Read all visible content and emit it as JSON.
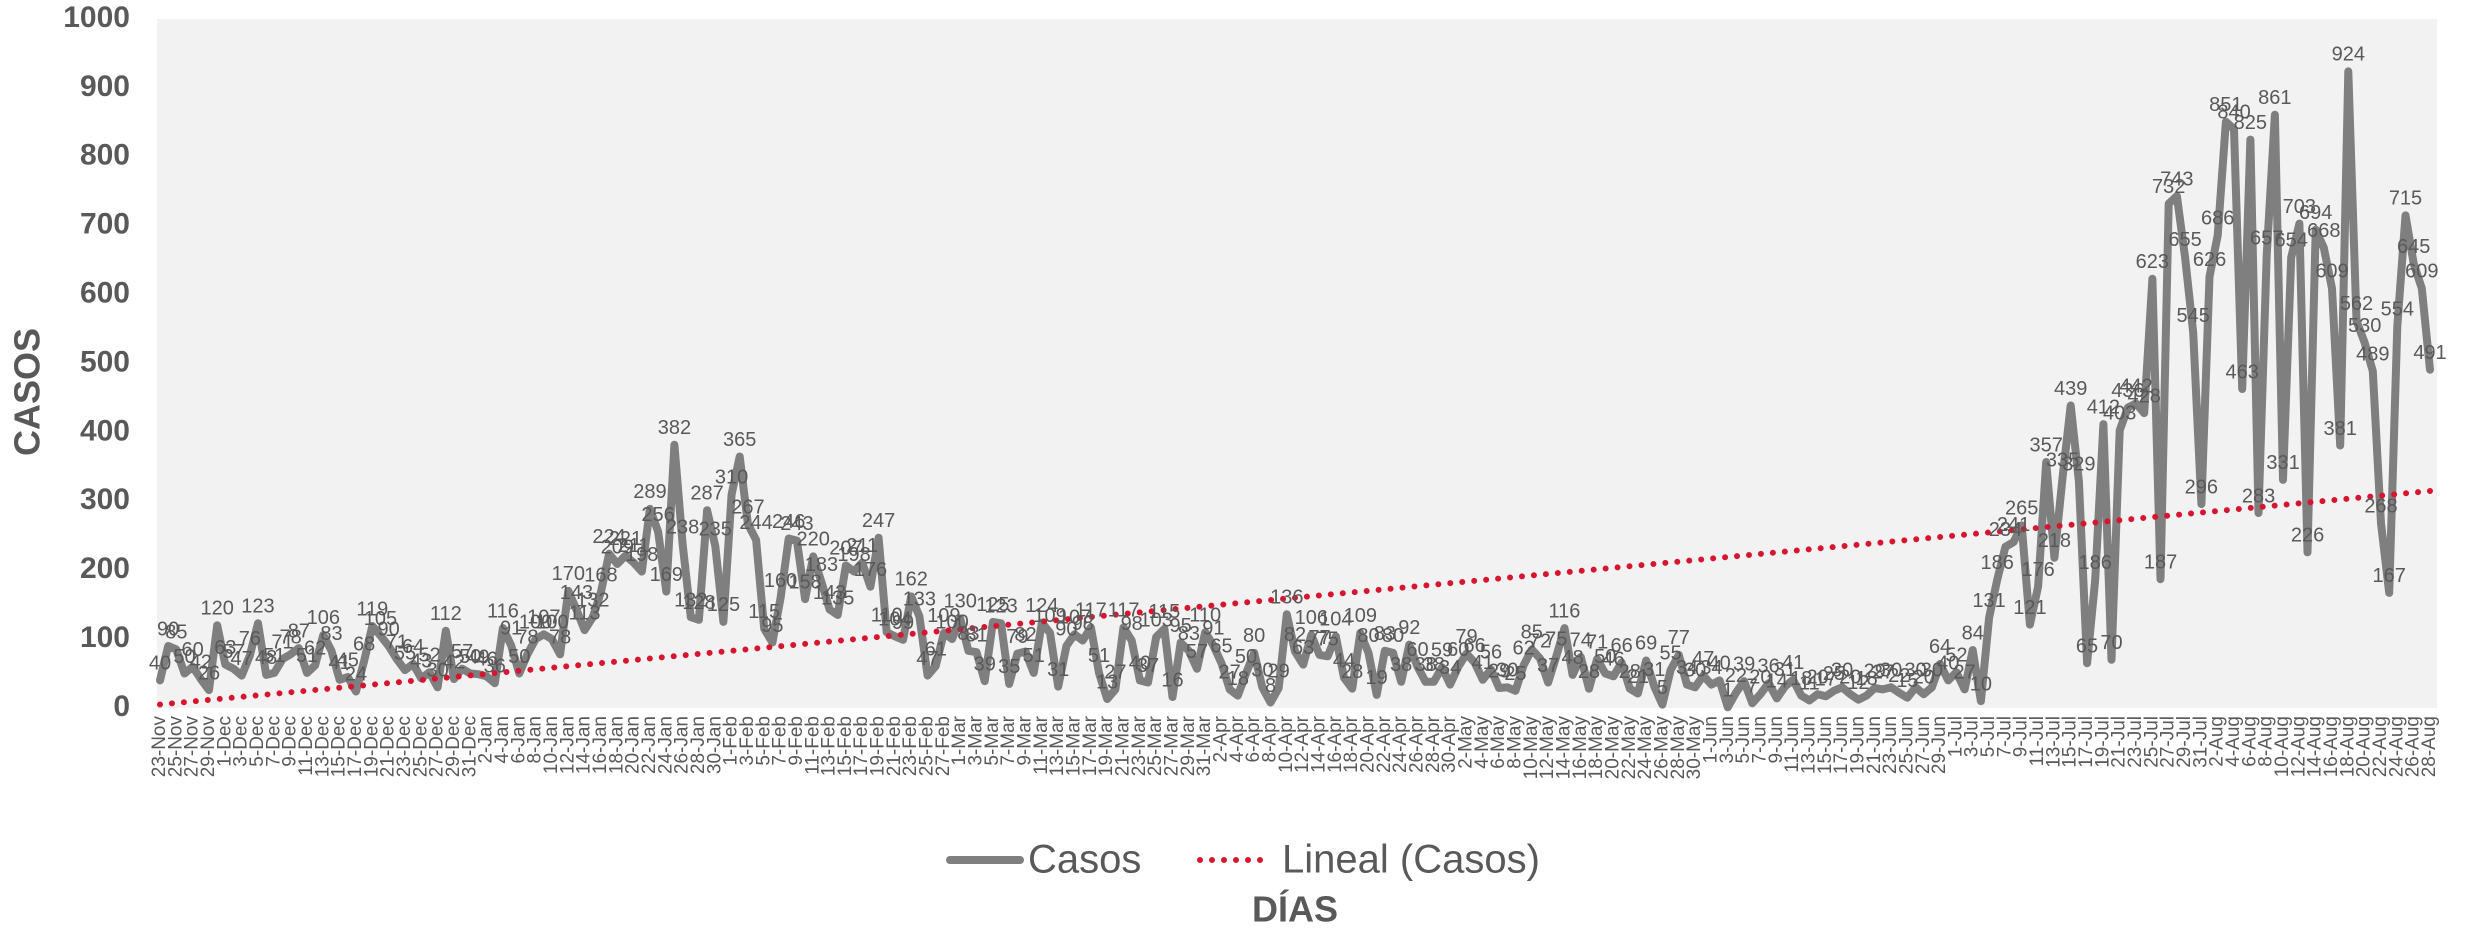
{
  "chart_data": {
    "type": "line",
    "x_label": "DÍAS",
    "y_label": "CASOS",
    "categories": [
      "23-Nov",
      null,
      "25-Nov",
      null,
      "27-Nov",
      null,
      "29-Nov",
      null,
      "1-Dec",
      null,
      "3-Dec",
      null,
      "5-Dec",
      null,
      "7-Dec",
      null,
      "9-Dec",
      null,
      "11-Dec",
      null,
      "13-Dec",
      null,
      "15-Dec",
      null,
      "17-Dec",
      null,
      "19-Dec",
      null,
      "21-Dec",
      null,
      "23-Dec",
      null,
      "25-Dec",
      null,
      "27-Dec",
      null,
      "29-Dec",
      null,
      "31-Dec",
      null,
      "2-Jan",
      null,
      "4-Jan",
      null,
      "6-Jan",
      null,
      "8-Jan",
      null,
      "10-Jan",
      null,
      "12-Jan",
      null,
      "14-Jan",
      null,
      "16-Jan",
      null,
      "18-Jan",
      null,
      "20-Jan",
      null,
      "22-Jan",
      null,
      "24-Jan",
      null,
      "26-Jan",
      null,
      "28-Jan",
      null,
      "30-Jan",
      null,
      "1-Feb",
      null,
      "3-Feb",
      null,
      "5-Feb",
      null,
      "7-Feb",
      null,
      "9-Feb",
      null,
      "11-Feb",
      null,
      "13-Feb",
      null,
      "15-Feb",
      null,
      "17-Feb",
      null,
      "19-Feb",
      null,
      "21-Feb",
      null,
      "23-Feb",
      null,
      "25-Feb",
      null,
      "27-Feb",
      null,
      "1-Mar",
      null,
      "3-Mar",
      null,
      "5-Mar",
      null,
      "7-Mar",
      null,
      "9-Mar",
      null,
      "11-Mar",
      null,
      "13-Mar",
      null,
      "15-Mar",
      null,
      "17-Mar",
      null,
      "19-Mar",
      null,
      "21-Mar",
      null,
      "23-Mar",
      null,
      "25-Mar",
      null,
      "27-Mar",
      null,
      "29-Mar",
      null,
      "31-Mar",
      null,
      "2-Apr",
      null,
      "4-Apr",
      null,
      "6-Apr",
      null,
      "8-Apr",
      null,
      "10-Apr",
      null,
      "12-Apr",
      null,
      "14-Apr",
      null,
      "16-Apr",
      null,
      "18-Apr",
      null,
      "20-Apr",
      null,
      "22-Apr",
      null,
      "24-Apr",
      null,
      "26-Apr",
      null,
      "28-Apr",
      null,
      "30-Apr",
      null,
      "2-May",
      null,
      "4-May",
      null,
      "6-May",
      null,
      "8-May",
      null,
      "10-May",
      null,
      "12-May",
      null,
      "14-May",
      null,
      "16-May",
      null,
      "18-May",
      null,
      "20-May",
      null,
      "22-May",
      null,
      "24-May",
      null,
      "26-May",
      null,
      "28-May",
      null,
      "30-May",
      null,
      "1-Jun",
      null,
      "3-Jun",
      null,
      "5-Jun",
      null,
      "7-Jun",
      null,
      "9-Jun",
      null,
      "11-Jun",
      null,
      "13-Jun",
      null,
      "15-Jun",
      null,
      "17-Jun",
      null,
      "19-Jun",
      null,
      "21-Jun",
      null,
      "23-Jun",
      null,
      "25-Jun",
      null,
      "27-Jun",
      null,
      "29-Jun",
      null,
      "1-Jul",
      null,
      "3-Jul",
      null,
      "5-Jul",
      null,
      "7-Jul",
      null,
      "9-Jul",
      null,
      "11-Jul",
      null,
      "13-Jul",
      null,
      "15-Jul",
      null,
      "17-Jul",
      null,
      "19-Jul",
      null,
      "21-Jul",
      null,
      "23-Jul",
      null,
      "25-Jul",
      null,
      "27-Jul",
      null,
      "29-Jul",
      null,
      "31-Jul",
      null,
      "2-Aug",
      null,
      "4-Aug",
      null,
      "6-Aug",
      null,
      "8-Aug",
      null,
      "10-Aug",
      null,
      "12-Aug",
      null,
      "14-Aug",
      null,
      "16-Aug",
      null,
      "18-Aug",
      null,
      "20-Aug",
      null,
      "22-Aug",
      null,
      "24-Aug",
      null,
      "26-Aug",
      null,
      "28-Aug"
    ],
    "series": [
      {
        "name": "Casos",
        "color": "#7f7f7f",
        "values": [
          40,
          90,
          85,
          50,
          60,
          42,
          26,
          120,
          63,
          57,
          47,
          76,
          123,
          48,
          51,
          71,
          78,
          87,
          51,
          62,
          106,
          83,
          41,
          45,
          24,
          68,
          119,
          105,
          90,
          71,
          55,
          64,
          43,
          52,
          30,
          112,
          42,
          57,
          50,
          49,
          46,
          36,
          116,
          91,
          50,
          78,
          100,
          107,
          100,
          78,
          170,
          143,
          113,
          132,
          168,
          224,
          209,
          221,
          211,
          198,
          289,
          256,
          169,
          382,
          238,
          132,
          128,
          287,
          235,
          125,
          310,
          365,
          267,
          244,
          115,
          95,
          160,
          246,
          243,
          158,
          220,
          183,
          143,
          135,
          207,
          198,
          211,
          176,
          247,
          110,
          104,
          99,
          162,
          133,
          47,
          61,
          109,
          100,
          130,
          83,
          81,
          39,
          125,
          123,
          35,
          79,
          82,
          51,
          124,
          109,
          31,
          90,
          107,
          98,
          117,
          51,
          13,
          27,
          117,
          98,
          40,
          37,
          103,
          115,
          16,
          95,
          83,
          57,
          110,
          91,
          65,
          27,
          18,
          50,
          80,
          30,
          8,
          29,
          136,
          82,
          63,
          106,
          77,
          75,
          104,
          44,
          28,
          109,
          80,
          19,
          83,
          80,
          38,
          92,
          60,
          38,
          38,
          59,
          34,
          60,
          79,
          66,
          41,
          56,
          29,
          30,
          25,
          62,
          85,
          72,
          37,
          75,
          116,
          48,
          74,
          28,
          71,
          50,
          46,
          66,
          28,
          21,
          69,
          31,
          5,
          55,
          77,
          34,
          30,
          47,
          34,
          40,
          1,
          22,
          39,
          7,
          20,
          36,
          14,
          31,
          41,
          18,
          11,
          20,
          17,
          25,
          30,
          20,
          12,
          18,
          29,
          27,
          30,
          22,
          15,
          30,
          20,
          30,
          64,
          40,
          52,
          27,
          84,
          10,
          131,
          186,
          234,
          241,
          265,
          121,
          176,
          357,
          218,
          335,
          439,
          329,
          65,
          186,
          412,
          70,
          403,
          436,
          442,
          428,
          623,
          187,
          732,
          743,
          655,
          545,
          296,
          626,
          686,
          851,
          840,
          463,
          825,
          283,
          657,
          861,
          331,
          654,
          703,
          226,
          694,
          668,
          609,
          381,
          924,
          562,
          530,
          489,
          268,
          167,
          554,
          715,
          645,
          609,
          491
        ]
      }
    ],
    "trendline": {
      "name": "Lineal (Casos)",
      "color": "#d7152f",
      "values": [
        5,
        315
      ]
    },
    "ylim": [
      0,
      1000
    ],
    "yticks": [
      0,
      100,
      200,
      300,
      400,
      500,
      600,
      700,
      800,
      900,
      1000
    ],
    "grid": false
  }
}
